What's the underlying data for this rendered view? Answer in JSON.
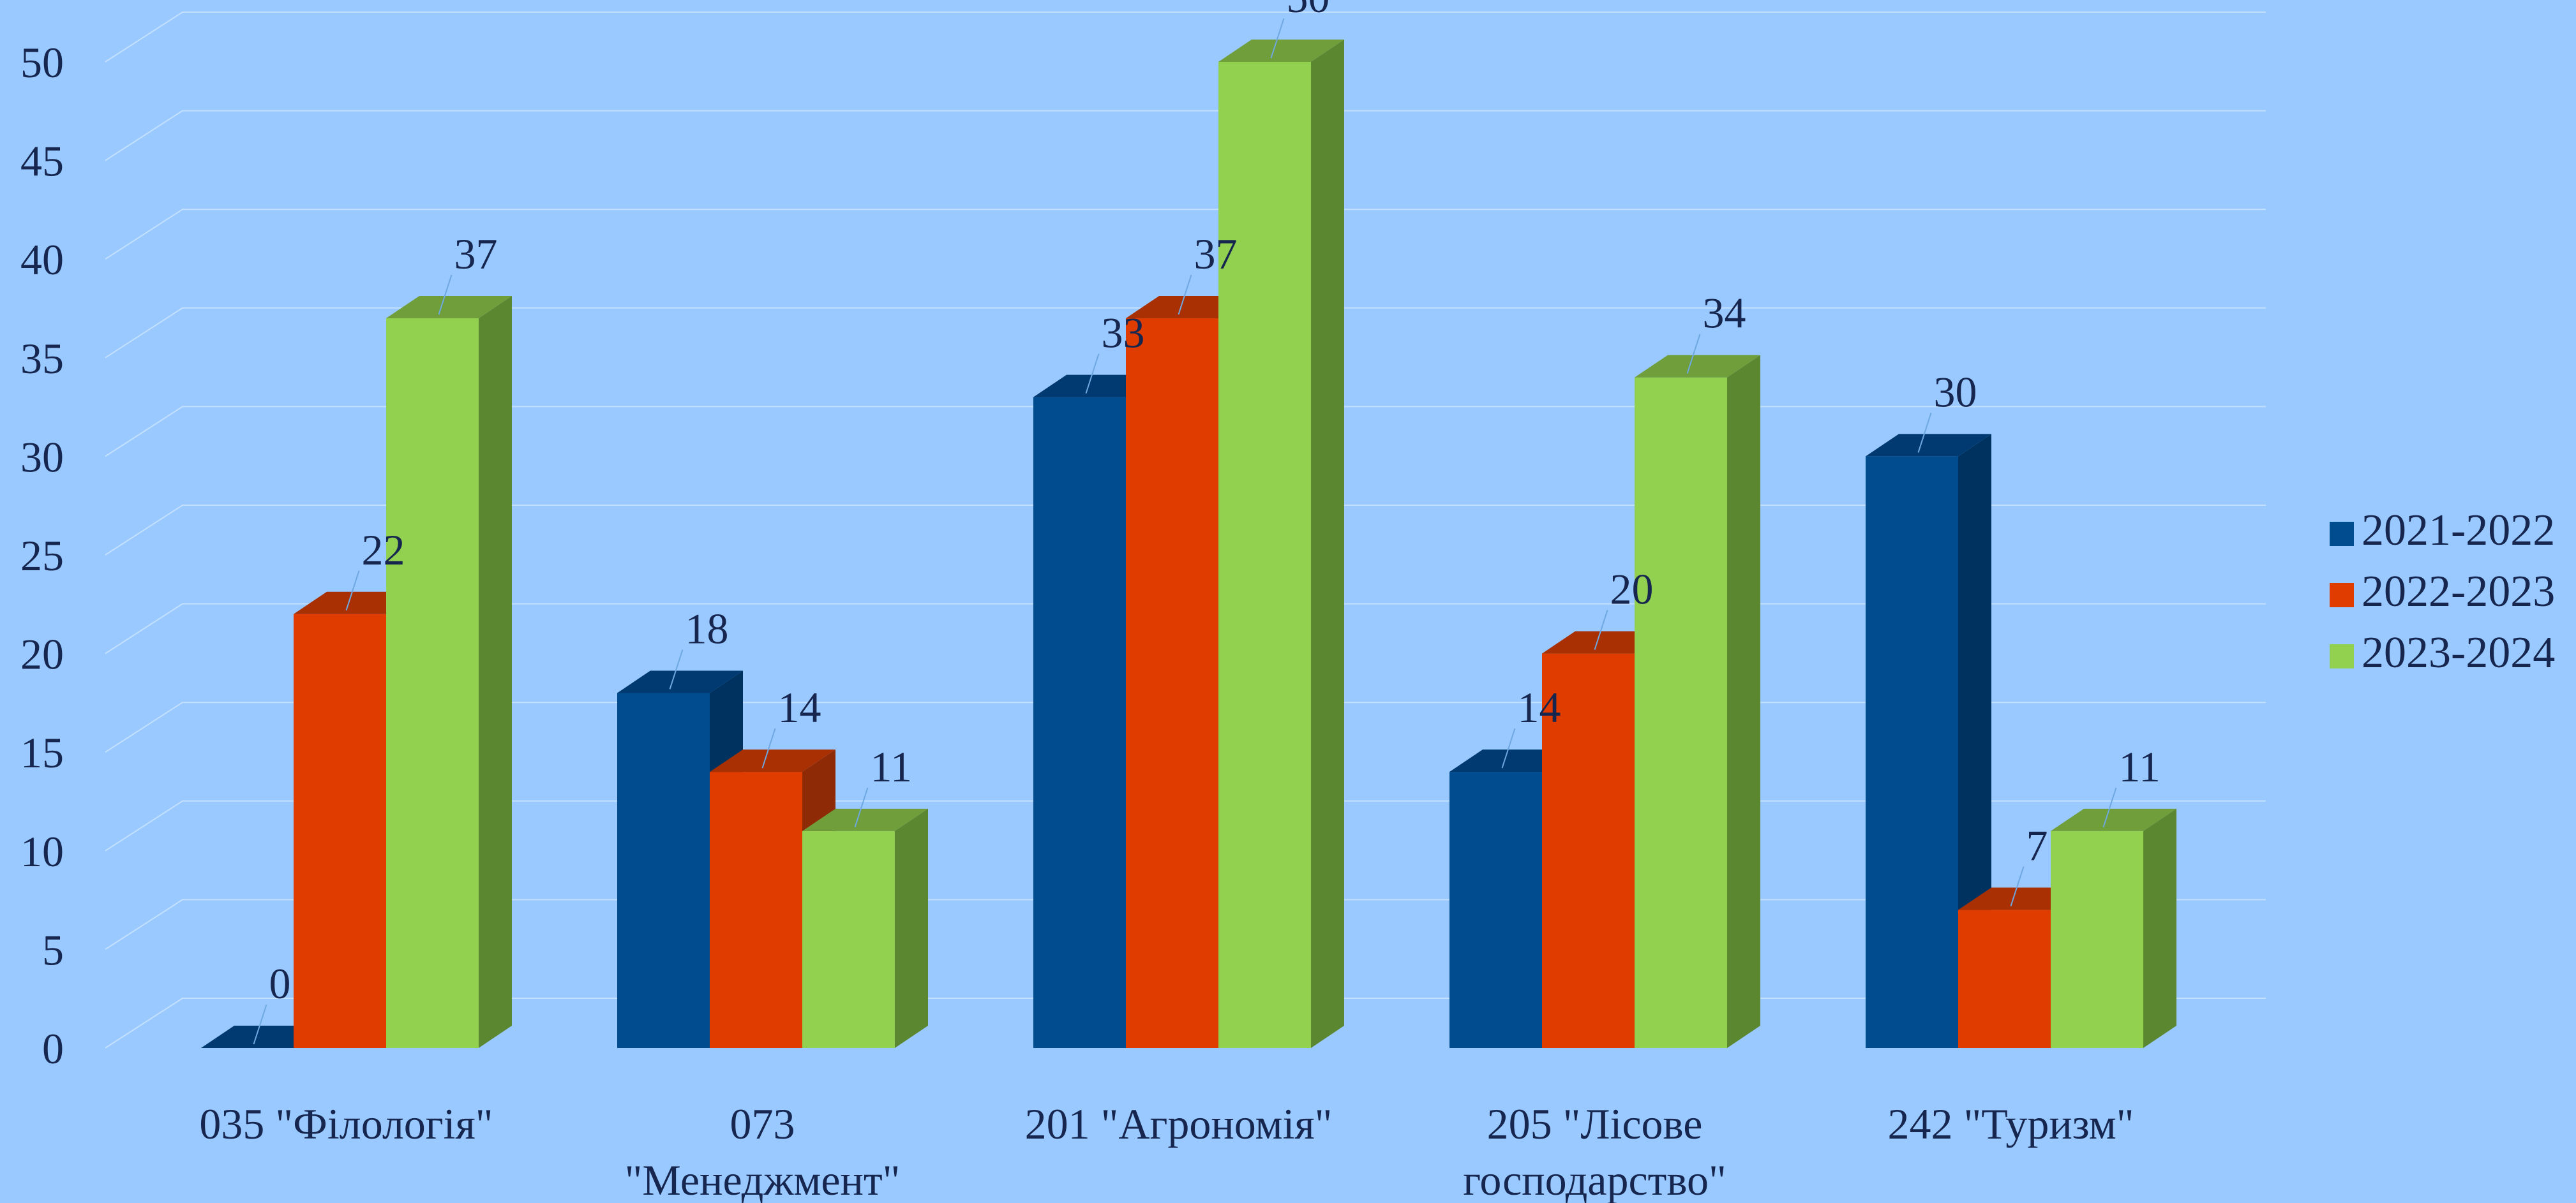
{
  "chart_data": {
    "type": "bar",
    "categories": [
      [
        "035 \"Філологія\""
      ],
      [
        "073",
        "\"Менеджмент\""
      ],
      [
        "201 \"Агрономія\""
      ],
      [
        "205 \"Лісове",
        "господарство\""
      ],
      [
        "242 \"Туризм\""
      ]
    ],
    "series": [
      {
        "name": "2021-2022",
        "values": [
          0,
          18,
          33,
          14,
          30
        ],
        "color": "#004c8f",
        "side": "#003260",
        "top": "#003a70"
      },
      {
        "name": "2022-2023",
        "values": [
          22,
          14,
          37,
          20,
          7
        ],
        "color": "#e03c00",
        "side": "#8e2a05",
        "top": "#a93003"
      },
      {
        "name": "2023-2024",
        "values": [
          37,
          11,
          50,
          34,
          11
        ],
        "color": "#92d050",
        "side": "#5c8731",
        "top": "#6f9e3b"
      }
    ],
    "y_ticks": [
      0,
      5,
      10,
      15,
      20,
      25,
      30,
      35,
      40,
      45,
      50
    ],
    "ylim": [
      0,
      50
    ],
    "data_labels": true,
    "grid": true,
    "legend": "right",
    "background": "#99c9ff",
    "grid_color": "#c3e0ff"
  }
}
